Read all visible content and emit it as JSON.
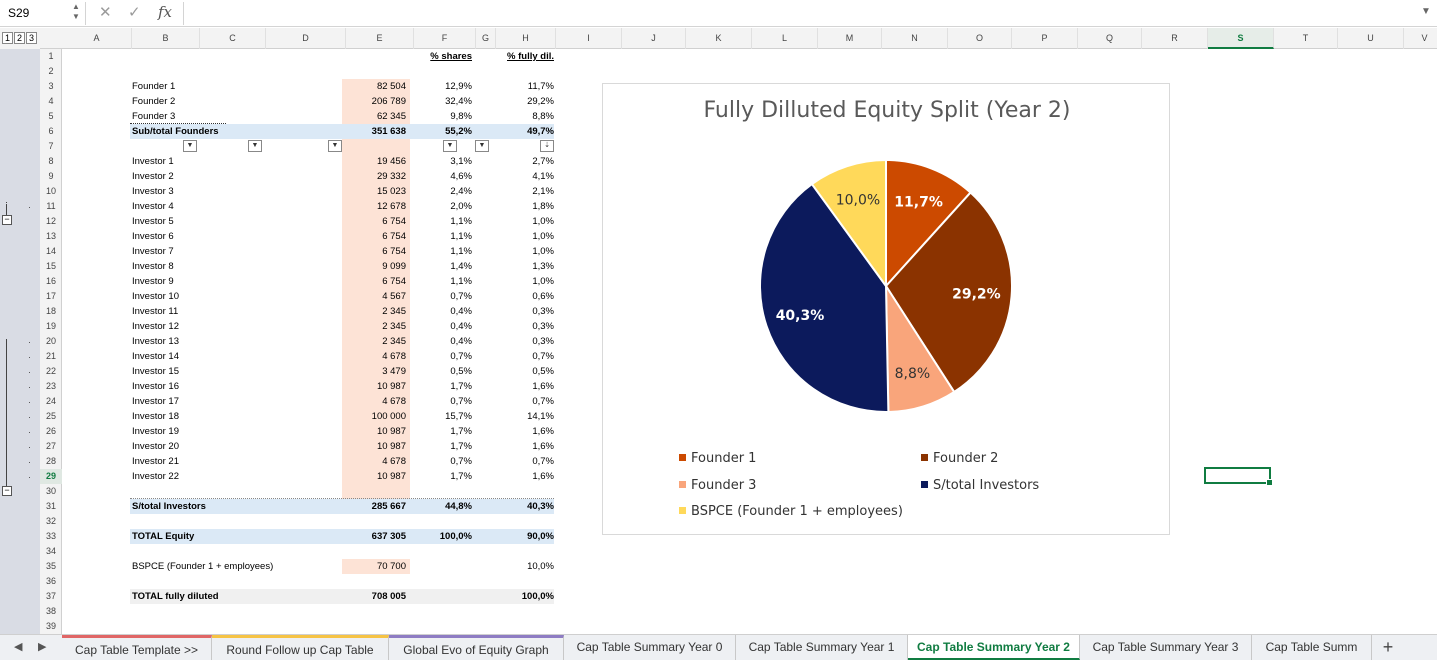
{
  "formula_bar": {
    "name_box": "S29",
    "fx": "fx",
    "cancel": "✕",
    "confirm": "✓",
    "formula": ""
  },
  "outline_levels": [
    "1",
    "2",
    "3"
  ],
  "columns": [
    {
      "l": "A",
      "w": 70
    },
    {
      "l": "B",
      "w": 68
    },
    {
      "l": "C",
      "w": 66
    },
    {
      "l": "D",
      "w": 80
    },
    {
      "l": "E",
      "w": 68
    },
    {
      "l": "F",
      "w": 62
    },
    {
      "l": "G",
      "w": 20
    },
    {
      "l": "H",
      "w": 60
    },
    {
      "l": "I",
      "w": 66
    },
    {
      "l": "J",
      "w": 64
    },
    {
      "l": "K",
      "w": 66
    },
    {
      "l": "L",
      "w": 66
    },
    {
      "l": "M",
      "w": 64
    },
    {
      "l": "N",
      "w": 66
    },
    {
      "l": "O",
      "w": 64
    },
    {
      "l": "P",
      "w": 66
    },
    {
      "l": "Q",
      "w": 64
    },
    {
      "l": "R",
      "w": 66
    },
    {
      "l": "S",
      "w": 66
    },
    {
      "l": "T",
      "w": 64
    },
    {
      "l": "U",
      "w": 66
    },
    {
      "l": "V",
      "w": 42
    }
  ],
  "selected_column": "S",
  "selected_row": 29,
  "rows": [
    "1",
    "2",
    "3",
    "4",
    "5",
    "6",
    "7",
    "8",
    "9",
    "10",
    "11",
    "12",
    "13",
    "14",
    "15",
    "16",
    "17",
    "18",
    "19",
    "20",
    "21",
    "22",
    "23",
    "24",
    "25",
    "26",
    "27",
    "28",
    "29",
    "30",
    "31",
    "32",
    "33",
    "34",
    "35",
    "36",
    "37",
    "38",
    "39"
  ],
  "table": {
    "header_shares": "% shares",
    "header_fully": "% fully dil.",
    "founders": [
      {
        "label": "Founder 1",
        "shares": "82 504",
        "pct": "12,9%",
        "fd": "11,7%"
      },
      {
        "label": "Founder 2",
        "shares": "206 789",
        "pct": "32,4%",
        "fd": "29,2%"
      },
      {
        "label": "Founder 3",
        "shares": "62 345",
        "pct": "9,8%",
        "fd": "8,8%"
      }
    ],
    "subtotal_founders": {
      "label": "Sub/total Founders",
      "shares": "351 638",
      "pct": "55,2%",
      "fd": "49,7%"
    },
    "investors": [
      {
        "label": "Investor 1",
        "shares": "19 456",
        "pct": "3,1%",
        "fd": "2,7%"
      },
      {
        "label": "Investor 2",
        "shares": "29 332",
        "pct": "4,6%",
        "fd": "4,1%"
      },
      {
        "label": "Investor 3",
        "shares": "15 023",
        "pct": "2,4%",
        "fd": "2,1%"
      },
      {
        "label": "Investor 4",
        "shares": "12 678",
        "pct": "2,0%",
        "fd": "1,8%"
      },
      {
        "label": "Investor 5",
        "shares": "6 754",
        "pct": "1,1%",
        "fd": "1,0%"
      },
      {
        "label": "Investor 6",
        "shares": "6 754",
        "pct": "1,1%",
        "fd": "1,0%"
      },
      {
        "label": "Investor 7",
        "shares": "6 754",
        "pct": "1,1%",
        "fd": "1,0%"
      },
      {
        "label": "Investor 8",
        "shares": "9 099",
        "pct": "1,4%",
        "fd": "1,3%"
      },
      {
        "label": "Investor 9",
        "shares": "6 754",
        "pct": "1,1%",
        "fd": "1,0%"
      },
      {
        "label": "Investor 10",
        "shares": "4 567",
        "pct": "0,7%",
        "fd": "0,6%"
      },
      {
        "label": "Investor 11",
        "shares": "2 345",
        "pct": "0,4%",
        "fd": "0,3%"
      },
      {
        "label": "Investor 12",
        "shares": "2 345",
        "pct": "0,4%",
        "fd": "0,3%"
      },
      {
        "label": "Investor 13",
        "shares": "2 345",
        "pct": "0,4%",
        "fd": "0,3%"
      },
      {
        "label": "Investor 14",
        "shares": "4 678",
        "pct": "0,7%",
        "fd": "0,7%"
      },
      {
        "label": "Investor 15",
        "shares": "3 479",
        "pct": "0,5%",
        "fd": "0,5%"
      },
      {
        "label": "Investor 16",
        "shares": "10 987",
        "pct": "1,7%",
        "fd": "1,6%"
      },
      {
        "label": "Investor 17",
        "shares": "4 678",
        "pct": "0,7%",
        "fd": "0,7%"
      },
      {
        "label": "Investor 18",
        "shares": "100 000",
        "pct": "15,7%",
        "fd": "14,1%"
      },
      {
        "label": "Investor 19",
        "shares": "10 987",
        "pct": "1,7%",
        "fd": "1,6%"
      },
      {
        "label": "Investor 20",
        "shares": "10 987",
        "pct": "1,7%",
        "fd": "1,6%"
      },
      {
        "label": "Investor 21",
        "shares": "4 678",
        "pct": "0,7%",
        "fd": "0,7%"
      },
      {
        "label": "Investor 22",
        "shares": "10 987",
        "pct": "1,7%",
        "fd": "1,6%"
      }
    ],
    "subtotal_investors": {
      "label": "S/total Investors",
      "shares": "285 667",
      "pct": "44,8%",
      "fd": "40,3%"
    },
    "total_equity": {
      "label": "TOTAL Equity",
      "shares": "637 305",
      "pct": "100,0%",
      "fd": "90,0%"
    },
    "bspce": {
      "label": "BSPCE (Founder 1 + employees)",
      "shares": "70 700",
      "fd": "10,0%"
    },
    "total_fully": {
      "label": "TOTAL fully diluted",
      "shares": "708 005",
      "fd": "100,0%"
    }
  },
  "chart_data": {
    "type": "pie",
    "title": "Fully Dilluted Equity Split (Year 2)",
    "legend_position": "bottom",
    "slices": [
      {
        "name": "Founder 1",
        "value": 11.7,
        "label": "11,7%",
        "color": "#cc4a00"
      },
      {
        "name": "Founder 2",
        "value": 29.2,
        "label": "29,2%",
        "color": "#8b3300"
      },
      {
        "name": "Founder 3",
        "value": 8.8,
        "label": "8,8%",
        "color": "#f9a57b"
      },
      {
        "name": "S/total Investors",
        "value": 40.3,
        "label": "40,3%",
        "color": "#0c1a5c"
      },
      {
        "name": "BSPCE (Founder 1 + employees)",
        "value": 10.0,
        "label": "10,0%",
        "color": "#ffd95a"
      }
    ]
  },
  "sheet_tabs": [
    {
      "label": "Cap Table Template >>",
      "color": "#e06666"
    },
    {
      "label": "Round Follow up Cap Table",
      "color": "#f6c344"
    },
    {
      "label": "Global Evo of Equity Graph",
      "color": "#8e7cc3"
    },
    {
      "label": "Cap Table Summary Year 0",
      "color": ""
    },
    {
      "label": "Cap Table Summary Year 1",
      "color": ""
    },
    {
      "label": "Cap Table Summary Year 2",
      "color": "",
      "active": true
    },
    {
      "label": "Cap Table Summary Year 3",
      "color": ""
    },
    {
      "label": "Cap Table Summ",
      "color": ""
    }
  ],
  "nav": {
    "prev": "◀",
    "next": "▶",
    "add": "+"
  }
}
